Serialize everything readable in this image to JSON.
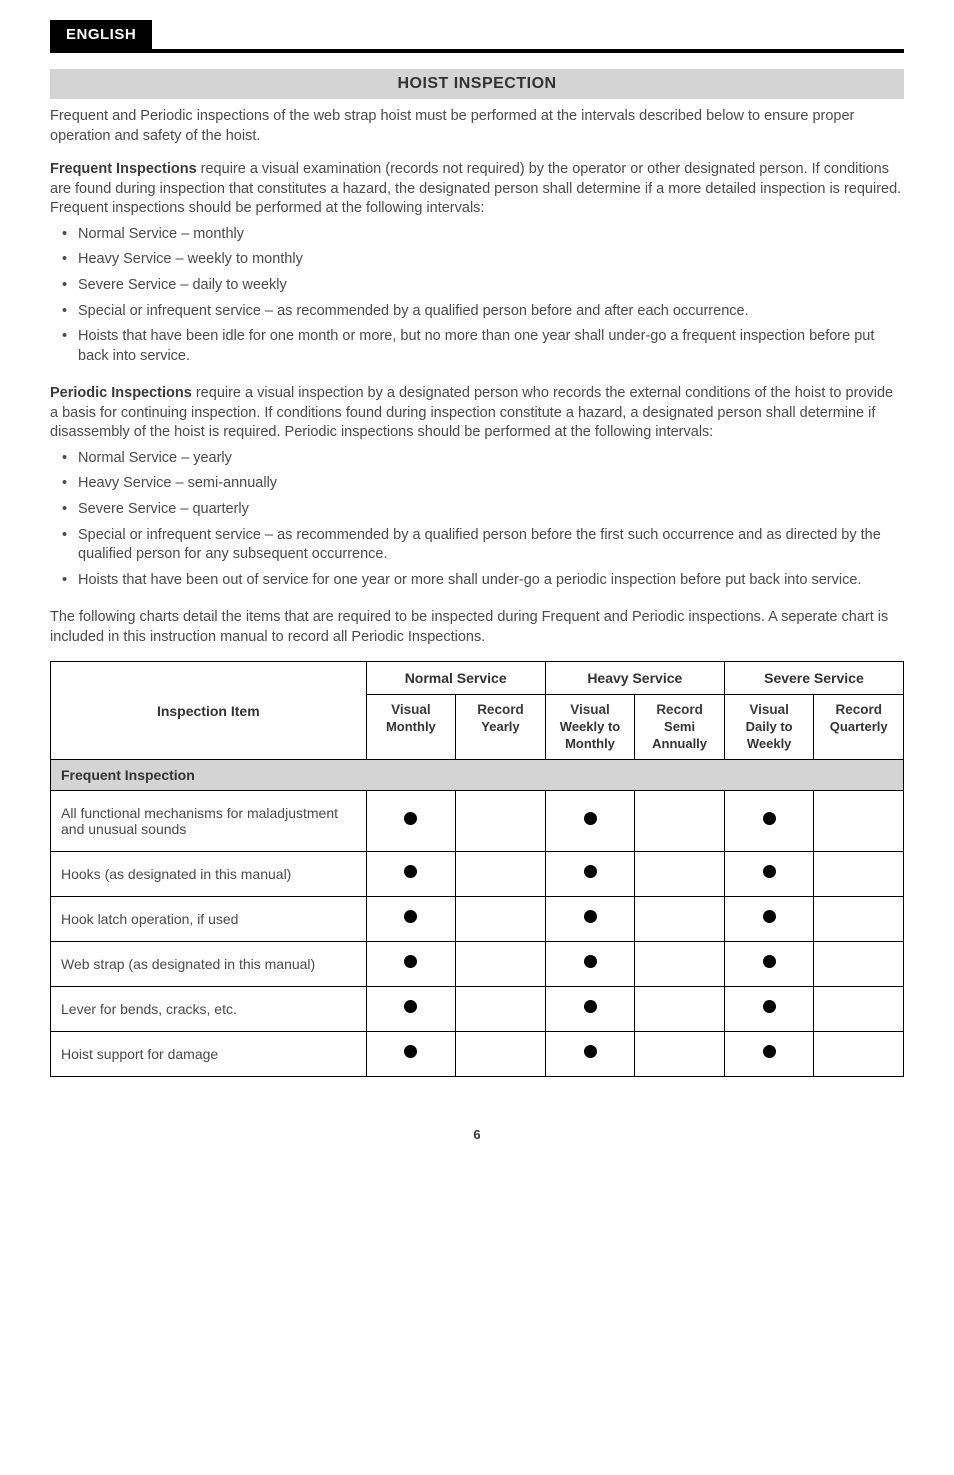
{
  "header": {
    "lang_tab": "ENGLISH"
  },
  "section_title": "HOIST INSPECTION",
  "intro": "Frequent and Periodic inspections of the web strap hoist must be performed at the intervals described below to ensure proper operation and safety of the hoist.",
  "frequent": {
    "lead_bold": "Frequent Inspections",
    "lead_rest": " require a visual examination (records not required) by the operator or other designated person. If conditions are found during inspection that constitutes a hazard, the designated person shall determine if a more detailed inspection is required. Frequent inspections should be performed at the following intervals:",
    "bullets": [
      "Normal Service – monthly",
      "Heavy Service – weekly to monthly",
      "Severe Service – daily to weekly",
      "Special or infrequent service – as recommended by a qualified person before and after each occurrence.",
      "Hoists that have been idle for one month or more, but no more than one year shall under-go a frequent inspection before put back into service."
    ]
  },
  "periodic": {
    "lead_bold": "Periodic Inspections",
    "lead_rest": " require a visual inspection by a designated person who records the external conditions of the hoist to provide a basis for continuing inspection.  If conditions found during inspection constitute a hazard, a designated person shall determine if disassembly of the hoist is required.  Periodic inspections should be performed at the following intervals:",
    "bullets": [
      "Normal Service – yearly",
      "Heavy Service – semi-annually",
      "Severe Service – quarterly",
      "Special or infrequent service – as recommended by a qualified person before the first such occurrence and as directed by the qualified person for any subsequent occurrence.",
      "Hoists that have been out of service for one year or more shall under-go a periodic inspection before put back into service."
    ]
  },
  "chart_note": "The following charts detail the items that are required to be inspected during Frequent and Periodic inspections. A seperate chart is included in this instruction manual to record all Periodic Inspections.",
  "table": {
    "col_widths": [
      "37%",
      "10.5%",
      "10.5%",
      "10.5%",
      "10.5%",
      "10.5%",
      "10.5%"
    ],
    "headers": {
      "inspection_item": "Inspection Item",
      "normal": "Normal Service",
      "heavy": "Heavy Service",
      "severe": "Severe Service",
      "cols": [
        {
          "bold": "Visual",
          "rest": "Monthly"
        },
        {
          "bold": "Record",
          "rest": "Yearly"
        },
        {
          "bold": "Visual",
          "rest": "Weekly to Monthly"
        },
        {
          "bold": "Record",
          "rest": "Semi Annually"
        },
        {
          "bold": "Visual",
          "rest": "Daily to Weekly"
        },
        {
          "bold": "Record",
          "rest": "Quarterly"
        }
      ]
    },
    "section_label": "Frequent Inspection",
    "rows": [
      {
        "item": "All functional mechanisms for maladjustment and unusual sounds",
        "dots": [
          true,
          false,
          true,
          false,
          true,
          false
        ]
      },
      {
        "item": "Hooks (as designated in this manual)",
        "dots": [
          true,
          false,
          true,
          false,
          true,
          false
        ]
      },
      {
        "item": "Hook latch operation, if used",
        "dots": [
          true,
          false,
          true,
          false,
          true,
          false
        ]
      },
      {
        "item": "Web strap (as designated in this manual)",
        "dots": [
          true,
          false,
          true,
          false,
          true,
          false
        ]
      },
      {
        "item": "Lever for bends, cracks, etc.",
        "dots": [
          true,
          false,
          true,
          false,
          true,
          false
        ]
      },
      {
        "item": "Hoist support for damage",
        "dots": [
          true,
          false,
          true,
          false,
          true,
          false
        ]
      }
    ]
  },
  "page_number": "6",
  "colors": {
    "tab_bg": "#000000",
    "section_bg": "#d4d4d4",
    "text": "#4a4a4a",
    "border": "#000000"
  }
}
